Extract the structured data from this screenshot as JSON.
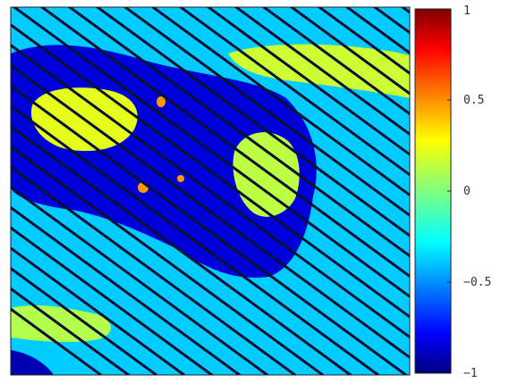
{
  "chart_data": {
    "type": "heatmap",
    "title": "",
    "xlabel": "",
    "ylabel": "",
    "colormap": "jet",
    "color_range": [
      -1,
      1
    ],
    "colorbar": {
      "ticks": [
        {
          "value": 1,
          "label": "1"
        },
        {
          "value": 0.5,
          "label": "0.5"
        },
        {
          "value": 0,
          "label": "0"
        },
        {
          "value": -0.5,
          "label": "−0.5"
        },
        {
          "value": -1,
          "label": "−1"
        }
      ]
    },
    "stripes": {
      "color": "#0a1030",
      "direction": "diagonal-down-right"
    },
    "background_value": -0.35,
    "regions": [
      {
        "type": "dark-blue-region",
        "value": -0.82
      },
      {
        "type": "yellow-patch",
        "value": 0.2
      },
      {
        "type": "yellow-patch",
        "value": 0.12
      },
      {
        "type": "yellow-patch",
        "value": 0.1
      },
      {
        "type": "yellow-patch",
        "value": 0.15
      },
      {
        "type": "orange-spot",
        "value": 0.45
      },
      {
        "type": "dark-blue-corner",
        "value": -0.9
      }
    ]
  }
}
